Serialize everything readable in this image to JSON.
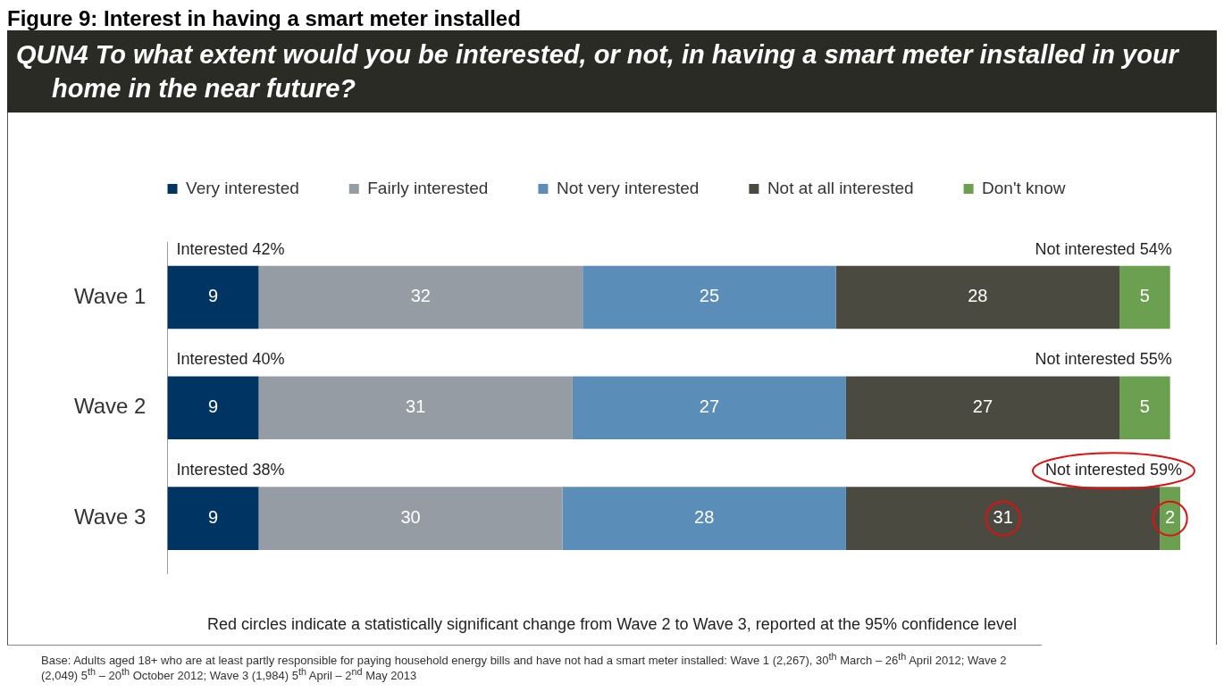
{
  "chart_data": {
    "type": "bar",
    "orientation": "horizontal",
    "stacked": true,
    "title": "Figure 9: Interest in having a smart meter installed",
    "subtitle": "QUN4  To what extent would you be interested, or not, in having a smart meter installed in your home in the near future?",
    "categories": [
      "Wave 1",
      "Wave 2",
      "Wave 3"
    ],
    "series": [
      {
        "name": "Very interested",
        "color": "#003462",
        "values": [
          9,
          9,
          9
        ]
      },
      {
        "name": "Fairly interested",
        "color": "#959ca3",
        "values": [
          32,
          31,
          30
        ]
      },
      {
        "name": "Not very interested",
        "color": "#5a8db8",
        "values": [
          25,
          27,
          28
        ]
      },
      {
        "name": "Not at all interested",
        "color": "#4a4a40",
        "values": [
          28,
          27,
          31
        ]
      },
      {
        "name": "Don't know",
        "color": "#6aa04f",
        "values": [
          5,
          5,
          2
        ]
      }
    ],
    "xlim": [
      0,
      100
    ],
    "tick_labels": "y",
    "data_labels": true,
    "legend": "top",
    "grid": false,
    "annotations": [
      {
        "text": "Interested 42%",
        "x": 0,
        "y": "Wave 1"
      },
      {
        "text": "Not interested 54%",
        "x": 99,
        "y": "Wave 1"
      },
      {
        "text": "Interested 40%",
        "x": 0,
        "y": "Wave 2"
      },
      {
        "text": "Not interested 55%",
        "x": 99,
        "y": "Wave 2"
      },
      {
        "text": "Interested 38%",
        "x": 0,
        "y": "Wave 3"
      },
      {
        "text": "Not interested 59%",
        "x": 100,
        "y": "Wave 3"
      },
      "Red circles indicate a statistically significant change from Wave 2 to Wave 3, reported at the 95% confidence level",
      "Base:  Adults aged 18+ who are at least partly responsible for paying household energy bills and have not had a smart meter installed: Wave 1 (2,267), 30$^{th}$ March – 26$^{th}$ April 2012; Wave 2 (2,049) 5$^{th}$ – 20$^{th}$ October 2012; Wave 3 (1,984) 5$^{th}$ April – 2$^{nd}$ May 2013"
    ]
  }
}
